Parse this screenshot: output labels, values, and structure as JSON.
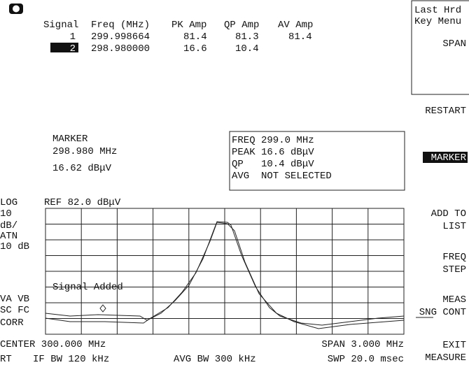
{
  "table": {
    "columns": [
      "Signal",
      "Freq (MHz)",
      "PK Amp",
      "QP Amp",
      "AV Amp"
    ],
    "rows": [
      [
        "1",
        "299.998664",
        "81.4",
        "81.3",
        "81.4"
      ],
      [
        "2",
        "298.980000",
        "16.6",
        "10.4"
      ]
    ]
  },
  "marker": {
    "label": "MARKER",
    "freq": "298.980 MHz",
    "amplitude": "16.62 dBμV"
  },
  "marker_box": {
    "lines": [
      "FREQ 299.0 MHz",
      "PEAK 16.6 dBμV",
      "QP   10.4 dBμV",
      "AVG  NOT SELECTED"
    ]
  },
  "screen": {
    "scale_type": "LOG",
    "scale_lines": [
      "10",
      "dB/",
      "ATN",
      "10 dB"
    ],
    "ref": "REF 82.0 dBμV",
    "annotation": "Signal Added",
    "status": [
      "VA VB",
      "SC FC",
      "CORR"
    ],
    "center": "CENTER 300.000 MHz",
    "span": "SPAN 3.000 MHz",
    "rt": "RT",
    "if_bw": "IF BW 120 kHz",
    "avg_bw": "AVG BW 300 kHz",
    "sweep": "SWP 20.0 msec"
  },
  "softkeys": [
    {
      "lines": [
        "Last Hrd",
        "Key Menu"
      ]
    },
    {
      "lines": [
        "SPAN"
      ]
    },
    {
      "lines": [
        "RESTART"
      ]
    },
    {
      "lines": [
        "MARKER"
      ]
    },
    {
      "lines": [
        "ADD TO",
        "LIST"
      ]
    },
    {
      "lines": [
        "FREQ",
        "STEP"
      ]
    },
    {
      "lines": [
        "MEAS",
        "SNG CONT"
      ]
    },
    {
      "lines": [
        "EXIT",
        "MEASURE"
      ]
    }
  ]
}
